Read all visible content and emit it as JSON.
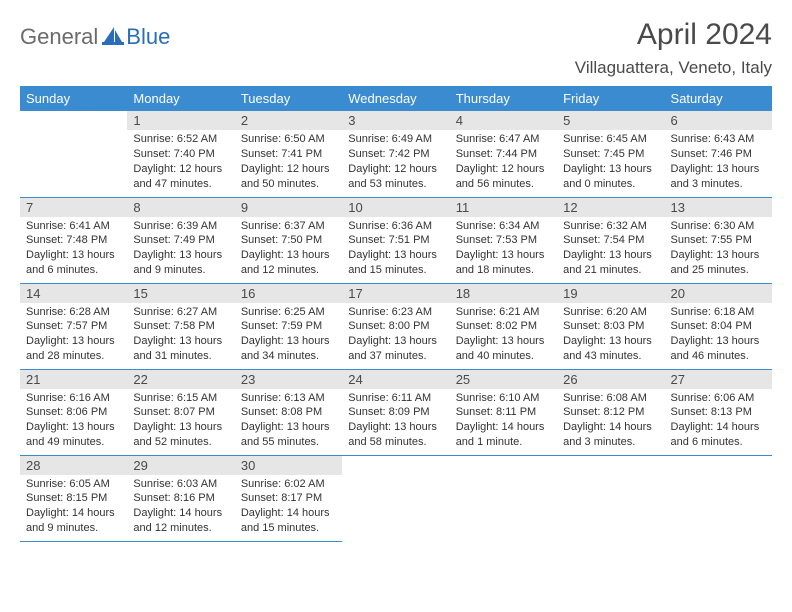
{
  "logo": {
    "general": "General",
    "blue": "Blue"
  },
  "title": "April 2024",
  "location": "Villaguattera, Veneto, Italy",
  "colors": {
    "header_bg": "#3b8bd0",
    "header_fg": "#ffffff",
    "daynum_bg": "#e6e6e6",
    "rule": "#3b8bd0",
    "logo_gray": "#6b6b6b",
    "logo_blue": "#2a6db8"
  },
  "weekdays": [
    "Sunday",
    "Monday",
    "Tuesday",
    "Wednesday",
    "Thursday",
    "Friday",
    "Saturday"
  ],
  "first_weekday_index": 1,
  "days": [
    {
      "n": 1,
      "sunrise": "6:52 AM",
      "sunset": "7:40 PM",
      "daylight": "12 hours and 47 minutes."
    },
    {
      "n": 2,
      "sunrise": "6:50 AM",
      "sunset": "7:41 PM",
      "daylight": "12 hours and 50 minutes."
    },
    {
      "n": 3,
      "sunrise": "6:49 AM",
      "sunset": "7:42 PM",
      "daylight": "12 hours and 53 minutes."
    },
    {
      "n": 4,
      "sunrise": "6:47 AM",
      "sunset": "7:44 PM",
      "daylight": "12 hours and 56 minutes."
    },
    {
      "n": 5,
      "sunrise": "6:45 AM",
      "sunset": "7:45 PM",
      "daylight": "13 hours and 0 minutes."
    },
    {
      "n": 6,
      "sunrise": "6:43 AM",
      "sunset": "7:46 PM",
      "daylight": "13 hours and 3 minutes."
    },
    {
      "n": 7,
      "sunrise": "6:41 AM",
      "sunset": "7:48 PM",
      "daylight": "13 hours and 6 minutes."
    },
    {
      "n": 8,
      "sunrise": "6:39 AM",
      "sunset": "7:49 PM",
      "daylight": "13 hours and 9 minutes."
    },
    {
      "n": 9,
      "sunrise": "6:37 AM",
      "sunset": "7:50 PM",
      "daylight": "13 hours and 12 minutes."
    },
    {
      "n": 10,
      "sunrise": "6:36 AM",
      "sunset": "7:51 PM",
      "daylight": "13 hours and 15 minutes."
    },
    {
      "n": 11,
      "sunrise": "6:34 AM",
      "sunset": "7:53 PM",
      "daylight": "13 hours and 18 minutes."
    },
    {
      "n": 12,
      "sunrise": "6:32 AM",
      "sunset": "7:54 PM",
      "daylight": "13 hours and 21 minutes."
    },
    {
      "n": 13,
      "sunrise": "6:30 AM",
      "sunset": "7:55 PM",
      "daylight": "13 hours and 25 minutes."
    },
    {
      "n": 14,
      "sunrise": "6:28 AM",
      "sunset": "7:57 PM",
      "daylight": "13 hours and 28 minutes."
    },
    {
      "n": 15,
      "sunrise": "6:27 AM",
      "sunset": "7:58 PM",
      "daylight": "13 hours and 31 minutes."
    },
    {
      "n": 16,
      "sunrise": "6:25 AM",
      "sunset": "7:59 PM",
      "daylight": "13 hours and 34 minutes."
    },
    {
      "n": 17,
      "sunrise": "6:23 AM",
      "sunset": "8:00 PM",
      "daylight": "13 hours and 37 minutes."
    },
    {
      "n": 18,
      "sunrise": "6:21 AM",
      "sunset": "8:02 PM",
      "daylight": "13 hours and 40 minutes."
    },
    {
      "n": 19,
      "sunrise": "6:20 AM",
      "sunset": "8:03 PM",
      "daylight": "13 hours and 43 minutes."
    },
    {
      "n": 20,
      "sunrise": "6:18 AM",
      "sunset": "8:04 PM",
      "daylight": "13 hours and 46 minutes."
    },
    {
      "n": 21,
      "sunrise": "6:16 AM",
      "sunset": "8:06 PM",
      "daylight": "13 hours and 49 minutes."
    },
    {
      "n": 22,
      "sunrise": "6:15 AM",
      "sunset": "8:07 PM",
      "daylight": "13 hours and 52 minutes."
    },
    {
      "n": 23,
      "sunrise": "6:13 AM",
      "sunset": "8:08 PM",
      "daylight": "13 hours and 55 minutes."
    },
    {
      "n": 24,
      "sunrise": "6:11 AM",
      "sunset": "8:09 PM",
      "daylight": "13 hours and 58 minutes."
    },
    {
      "n": 25,
      "sunrise": "6:10 AM",
      "sunset": "8:11 PM",
      "daylight": "14 hours and 1 minute."
    },
    {
      "n": 26,
      "sunrise": "6:08 AM",
      "sunset": "8:12 PM",
      "daylight": "14 hours and 3 minutes."
    },
    {
      "n": 27,
      "sunrise": "6:06 AM",
      "sunset": "8:13 PM",
      "daylight": "14 hours and 6 minutes."
    },
    {
      "n": 28,
      "sunrise": "6:05 AM",
      "sunset": "8:15 PM",
      "daylight": "14 hours and 9 minutes."
    },
    {
      "n": 29,
      "sunrise": "6:03 AM",
      "sunset": "8:16 PM",
      "daylight": "14 hours and 12 minutes."
    },
    {
      "n": 30,
      "sunrise": "6:02 AM",
      "sunset": "8:17 PM",
      "daylight": "14 hours and 15 minutes."
    }
  ],
  "labels": {
    "sunrise": "Sunrise:",
    "sunset": "Sunset:",
    "daylight": "Daylight:"
  }
}
